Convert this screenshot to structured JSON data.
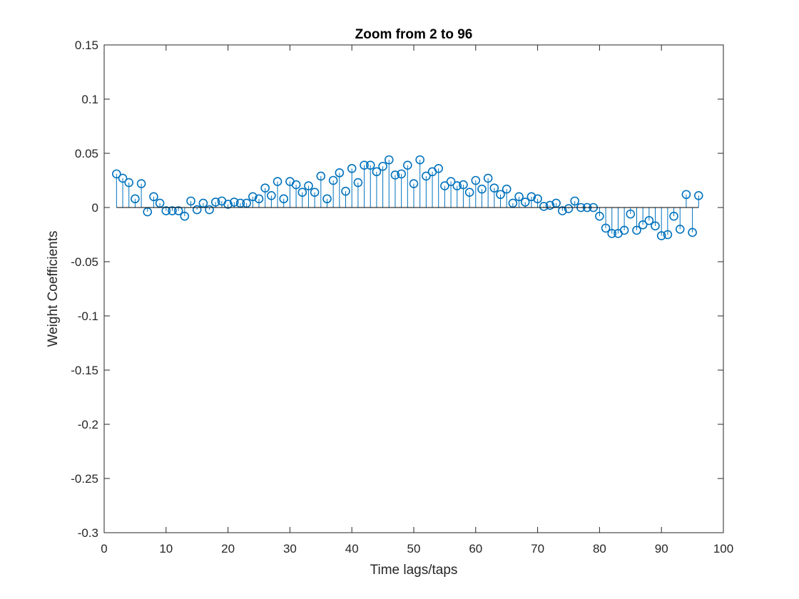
{
  "colors": {
    "series": "#0072BD",
    "axis": "#262626",
    "baseline": "#000000"
  },
  "chart_data": {
    "type": "stem",
    "title": "Zoom from 2 to 96",
    "xlabel": "Time lags/taps",
    "ylabel": "Weight Coefficients",
    "xlim": [
      0,
      100
    ],
    "ylim": [
      -0.3,
      0.15
    ],
    "xticks": [
      0,
      10,
      20,
      30,
      40,
      50,
      60,
      70,
      80,
      90,
      100
    ],
    "xtick_labels": [
      "0",
      "10",
      "20",
      "30",
      "40",
      "50",
      "60",
      "70",
      "80",
      "90",
      "100"
    ],
    "yticks": [
      0.15,
      0.1,
      0.05,
      0,
      -0.05,
      -0.1,
      -0.15,
      -0.2,
      -0.25,
      -0.3
    ],
    "ytick_labels": [
      "0.15",
      "0.1",
      "0.05",
      "0",
      "-0.05",
      "-0.1",
      "-0.15",
      "-0.2",
      "-0.25",
      "-0.3"
    ],
    "grid": false,
    "marker": "open-circle",
    "x": [
      2,
      3,
      4,
      5,
      6,
      7,
      8,
      9,
      10,
      11,
      12,
      13,
      14,
      15,
      16,
      17,
      18,
      19,
      20,
      21,
      22,
      23,
      24,
      25,
      26,
      27,
      28,
      29,
      30,
      31,
      32,
      33,
      34,
      35,
      36,
      37,
      38,
      39,
      40,
      41,
      42,
      43,
      44,
      45,
      46,
      47,
      48,
      49,
      50,
      51,
      52,
      53,
      54,
      55,
      56,
      57,
      58,
      59,
      60,
      61,
      62,
      63,
      64,
      65,
      66,
      67,
      68,
      69,
      70,
      71,
      72,
      73,
      74,
      75,
      76,
      77,
      78,
      79,
      80,
      81,
      82,
      83,
      84,
      85,
      86,
      87,
      88,
      89,
      90,
      91,
      92,
      93,
      94,
      95,
      96
    ],
    "values": [
      0.031,
      0.027,
      0.023,
      0.008,
      0.022,
      -0.004,
      0.01,
      0.004,
      -0.003,
      -0.003,
      -0.003,
      -0.008,
      0.006,
      -0.002,
      0.004,
      -0.002,
      0.005,
      0.006,
      0.003,
      0.005,
      0.004,
      0.004,
      0.01,
      0.008,
      0.018,
      0.011,
      0.024,
      0.008,
      0.024,
      0.021,
      0.014,
      0.02,
      0.014,
      0.029,
      0.008,
      0.025,
      0.032,
      0.015,
      0.036,
      0.023,
      0.039,
      0.039,
      0.033,
      0.038,
      0.044,
      0.03,
      0.031,
      0.039,
      0.022,
      0.044,
      0.029,
      0.033,
      0.036,
      0.02,
      0.024,
      0.02,
      0.021,
      0.014,
      0.025,
      0.017,
      0.027,
      0.018,
      0.012,
      0.017,
      0.004,
      0.01,
      0.005,
      0.01,
      0.008,
      0.001,
      0.002,
      0.004,
      -0.003,
      -0.001,
      0.006,
      0.0,
      0.0,
      0.0,
      -0.008,
      -0.019,
      -0.024,
      -0.024,
      -0.021,
      -0.006,
      -0.021,
      -0.016,
      -0.012,
      -0.017,
      -0.026,
      -0.025,
      -0.008,
      -0.02,
      0.012,
      -0.023,
      0.011
    ]
  }
}
